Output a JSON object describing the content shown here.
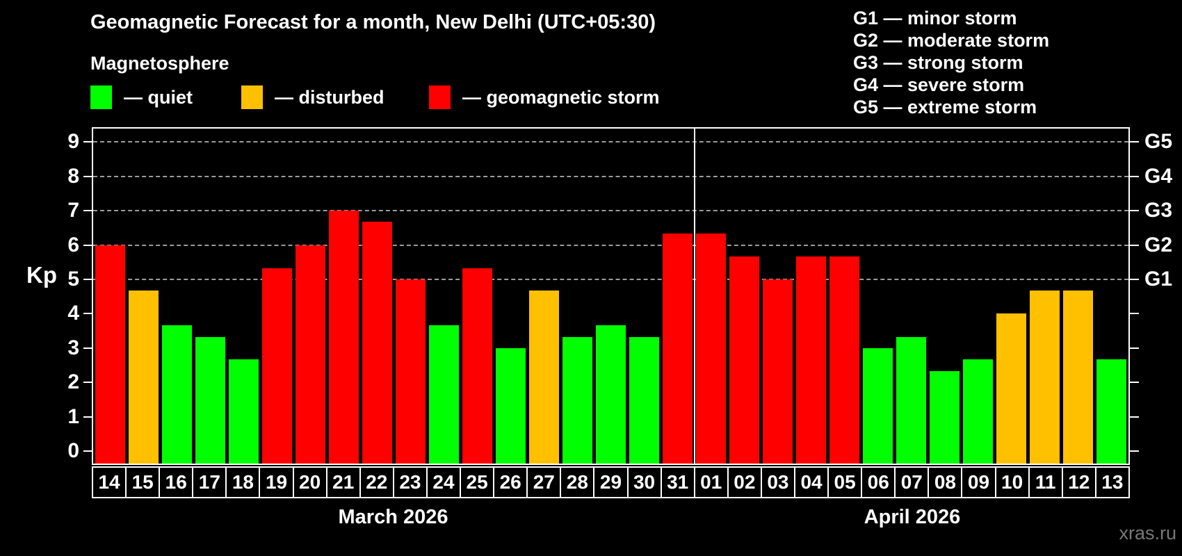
{
  "header": {
    "title": "Geomagnetic Forecast for a month, New Delhi (UTC+05:30)",
    "subtitle": "Magnetosphere"
  },
  "legend": [
    {
      "key": "quiet",
      "label": "— quiet",
      "color": "#00ff00"
    },
    {
      "key": "disturbed",
      "label": "— disturbed",
      "color": "#ffc000"
    },
    {
      "key": "storm",
      "label": "— geomagnetic storm",
      "color": "#ff0000"
    }
  ],
  "g_legend": [
    "G1 — minor storm",
    "G2 — moderate storm",
    "G3 — strong storm",
    "G4 — severe storm",
    "G5 — extreme storm"
  ],
  "watermark": "xras.ru",
  "chart_data": {
    "type": "bar",
    "ylabel": "Kp",
    "ylim": [
      -0.36,
      9.39
    ],
    "y_ticks": [
      0,
      1,
      2,
      3,
      4,
      5,
      6,
      7,
      8,
      9
    ],
    "gridlines_at": [
      5,
      6,
      7,
      8,
      9
    ],
    "right_axis_labels": [
      {
        "value": 5,
        "label": "G1"
      },
      {
        "value": 6,
        "label": "G2"
      },
      {
        "value": 7,
        "label": "G3"
      },
      {
        "value": 8,
        "label": "G4"
      },
      {
        "value": 9,
        "label": "G5"
      }
    ],
    "months": [
      {
        "label": "March 2026",
        "days": 18
      },
      {
        "label": "April 2026",
        "days": 13
      }
    ],
    "categories": [
      "14",
      "15",
      "16",
      "17",
      "18",
      "19",
      "20",
      "21",
      "22",
      "23",
      "24",
      "25",
      "26",
      "27",
      "28",
      "29",
      "30",
      "31",
      "01",
      "02",
      "03",
      "04",
      "05",
      "06",
      "07",
      "08",
      "09",
      "10",
      "11",
      "12",
      "13"
    ],
    "values": [
      6.0,
      4.67,
      3.67,
      3.33,
      2.67,
      5.33,
      6.0,
      7.0,
      6.67,
      5.0,
      3.67,
      5.33,
      3.0,
      4.67,
      3.33,
      3.67,
      3.33,
      6.33,
      6.33,
      5.67,
      5.0,
      5.67,
      5.67,
      3.0,
      3.33,
      2.33,
      2.67,
      4.0,
      4.67,
      4.67,
      2.67
    ],
    "statuses": [
      "storm",
      "disturbed",
      "quiet",
      "quiet",
      "quiet",
      "storm",
      "storm",
      "storm",
      "storm",
      "storm",
      "quiet",
      "storm",
      "quiet",
      "disturbed",
      "quiet",
      "quiet",
      "quiet",
      "storm",
      "storm",
      "storm",
      "storm",
      "storm",
      "storm",
      "quiet",
      "quiet",
      "quiet",
      "quiet",
      "disturbed",
      "disturbed",
      "disturbed",
      "quiet"
    ],
    "status_colors": {
      "quiet": "#00ff00",
      "disturbed": "#ffc000",
      "storm": "#ff0000"
    },
    "grid_color": "#9c9c9c"
  }
}
